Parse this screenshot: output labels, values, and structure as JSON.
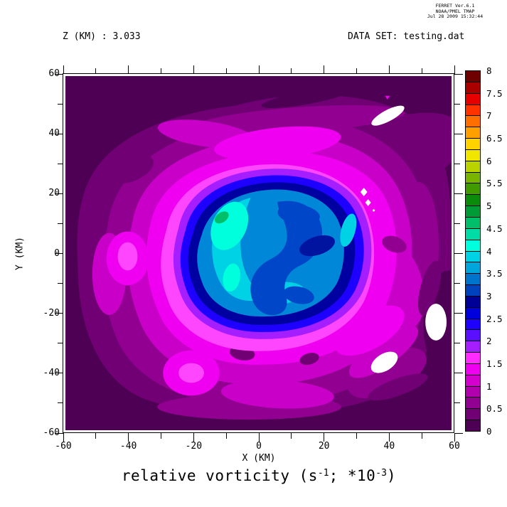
{
  "meta": {
    "line1": "FERRET  Ver.6.1",
    "line2": "NOAA/PMEL TMAP",
    "line3": "Jul 28 2009 15:32:44"
  },
  "header": {
    "z_label": "Z (KM) : 3.033",
    "dataset_label": "DATA SET: testing.dat"
  },
  "chart_data": {
    "type": "heatmap",
    "title_plain": "relative vorticity (s^-1; *10^-3)",
    "title_parts": {
      "pre": "relative vorticity (s",
      "sup1": "-1",
      "mid": "; *10",
      "sup2": "-3",
      "post": ")"
    },
    "xlabel": "X (KM)",
    "ylabel": "Y (KM)",
    "z_km": 3.033,
    "xlim": [
      -60,
      60
    ],
    "ylim": [
      -60,
      60
    ],
    "x_major_ticks": [
      -60,
      -40,
      -20,
      0,
      20,
      40,
      60
    ],
    "x_tick_labels": [
      "-60",
      "-40",
      "-20",
      "0",
      "20",
      "40",
      "60"
    ],
    "y_major_ticks": [
      60,
      40,
      20,
      0,
      -20,
      -40,
      -60
    ],
    "y_tick_labels": [
      "60",
      "40",
      "20",
      "0",
      "-20",
      "-40",
      "-60"
    ],
    "minor_tick_step": 10,
    "major_tick_step": 20,
    "grid": false,
    "legend_position": "right-colorbar",
    "field_summary": "Axisymmetric vortex centered near (0,0); values rise from ~0-0.5 (dark purple) at the domain edges through magenta (~1), violet-blue ring (~2), navy ring (~3) to a blue/cyan core (~3.5-4.75, small green speck ~4.5-4.75). Small white patches (missing data) near (40,50), (28,2), (55,-23), (40,-39).",
    "contour_interval": 0.25,
    "visible_value_range": [
      0,
      4.75
    ],
    "colorbar": {
      "min": 0,
      "max": 8,
      "cell_step": 0.25,
      "label_step": 0.5,
      "labels": [
        "0",
        "0.5",
        "1",
        "1.5",
        "2",
        "2.5",
        "3",
        "3.5",
        "4",
        "4.5",
        "5",
        "5.5",
        "6",
        "6.5",
        "7",
        "7.5",
        "8"
      ],
      "colors_ascending": [
        "#4E0055",
        "#700074",
        "#910090",
        "#B200AE",
        "#D300D0",
        "#F000F0",
        "#FF2BFF",
        "#A51EFF",
        "#5A0FFF",
        "#1E00FF",
        "#0000DC",
        "#000096",
        "#0041BE",
        "#0073CD",
        "#00A5DC",
        "#00D2E6",
        "#00FFDC",
        "#00DCA5",
        "#00BE69",
        "#009B37",
        "#0A8C0A",
        "#419B00",
        "#78B400",
        "#B9D200",
        "#F0E600",
        "#FFD200",
        "#FFA000",
        "#FF6E00",
        "#FF3200",
        "#E60000",
        "#AA0000",
        "#6E0000"
      ]
    },
    "map_colors": {
      "bg": "#4E0055",
      "l1": "#700074",
      "l2": "#910090",
      "l3": "#C800C8",
      "l4": "#F000F0",
      "pink": "#FF46FF",
      "violet": "#A51EFF",
      "blue": "#1E00FF",
      "navy": "#0000A0",
      "blue2": "#0046C8",
      "azure": "#0087D7",
      "cyan": "#00D2E6",
      "cyan2": "#00FFDC",
      "green": "#00BE69",
      "navy2": "#0014A0",
      "white": "#FFFFFF"
    }
  }
}
